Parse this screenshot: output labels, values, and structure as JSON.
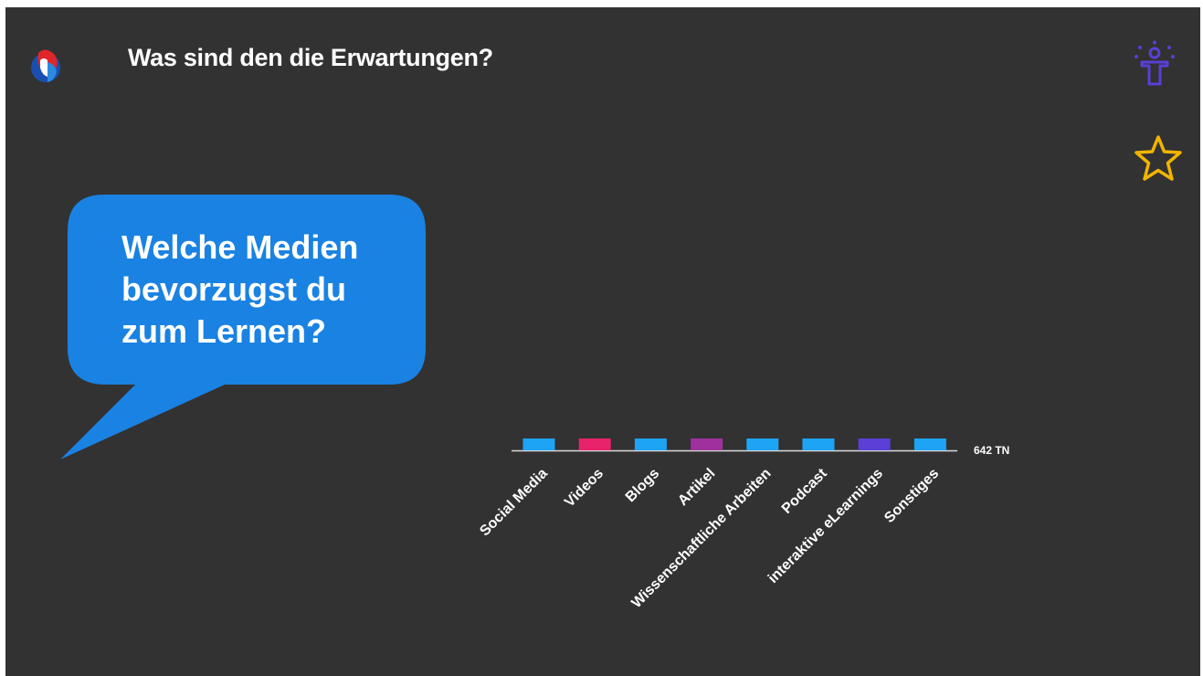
{
  "slide": {
    "title": "Was sind den die Erwartungen?",
    "question": "Welche Medien\nbevorzugst du\nzum Lernen?",
    "bubble_color": "#1a82e2",
    "background": "#323232"
  },
  "icons": {
    "logo": "swisscom-logo",
    "presenter": "presenter-icon",
    "star": "star-icon",
    "presenter_color": "#5b3fd6",
    "star_color": "#f2b400"
  },
  "chart_data": {
    "type": "bar",
    "categories": [
      "Social Media",
      "Videos",
      "Blogs",
      "Artikel",
      "Wissenschaftliche Arbeiten",
      "Podcast",
      "interaktive eLearnings",
      "Sonstiges"
    ],
    "colors": [
      "#1ea4f5",
      "#e8236b",
      "#1ea4f5",
      "#a0309e",
      "#1ea4f5",
      "#1ea4f5",
      "#5b3fd6",
      "#1ea4f5"
    ],
    "values": [
      0,
      0,
      0,
      0,
      0,
      0,
      0,
      0
    ],
    "total_label": "642 TN",
    "xlabel": "",
    "ylabel": ""
  }
}
